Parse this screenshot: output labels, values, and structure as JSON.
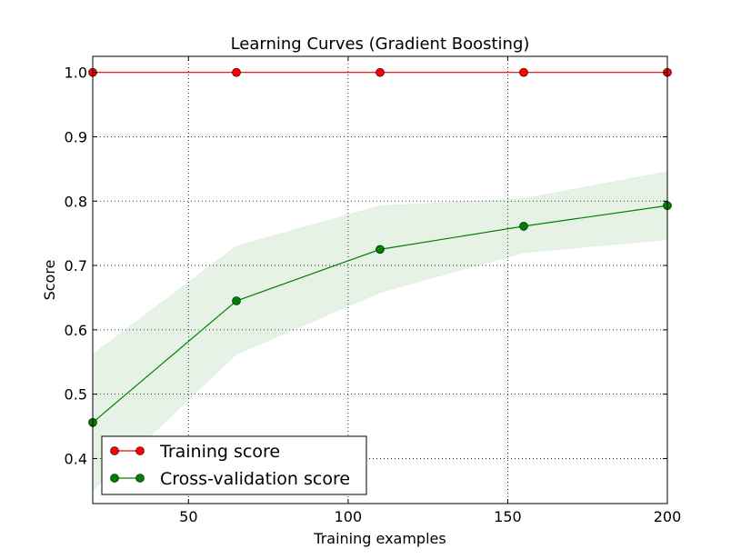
{
  "chart_data": {
    "type": "line",
    "title": "Learning Curves (Gradient Boosting)",
    "xlabel": "Training examples",
    "ylabel": "Score",
    "xlim": [
      20,
      200
    ],
    "ylim": [
      0.33,
      1.025
    ],
    "xticks": [
      50,
      100,
      150,
      200
    ],
    "yticks": [
      0.4,
      0.5,
      0.6,
      0.7,
      0.8,
      0.9,
      1.0
    ],
    "grid": true,
    "legend_position": "lower-left",
    "x": [
      20,
      65,
      110,
      155,
      200
    ],
    "series": [
      {
        "name": "Training score",
        "color": "#ff0000",
        "marker": "circle",
        "values": [
          1.0,
          1.0,
          1.0,
          1.0,
          1.0
        ],
        "band_lower": [
          1.0,
          1.0,
          1.0,
          1.0,
          1.0
        ],
        "band_upper": [
          1.0,
          1.0,
          1.0,
          1.0,
          1.0
        ]
      },
      {
        "name": "Cross-validation score",
        "color": "#008000",
        "marker": "circle",
        "values": [
          0.456,
          0.645,
          0.725,
          0.761,
          0.793
        ],
        "band_lower": [
          0.35,
          0.562,
          0.658,
          0.72,
          0.74
        ],
        "band_upper": [
          0.562,
          0.73,
          0.793,
          0.804,
          0.846
        ]
      }
    ]
  }
}
